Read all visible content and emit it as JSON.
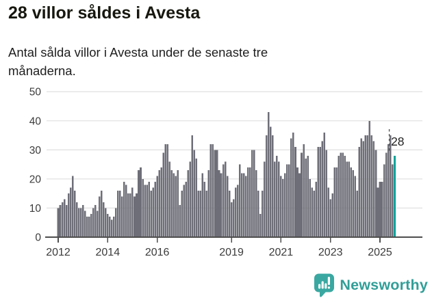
{
  "header": {
    "title": "28 villor såldes i Avesta",
    "subtitle": "Antal sålda villor i Avesta under de senaste tre månaderna."
  },
  "chart_data": {
    "type": "bar",
    "title": "28 villor såldes i Avesta",
    "xlabel": "",
    "ylabel": "",
    "x_start": "2012-01",
    "x_end": "2025-08",
    "frequency": "monthly",
    "values": [
      10,
      11,
      12,
      13,
      11,
      15,
      17,
      21,
      16,
      12,
      10,
      10,
      11,
      9,
      7,
      7,
      8,
      10,
      11,
      9,
      14,
      16,
      12,
      10,
      8,
      7,
      6,
      7,
      10,
      16,
      16,
      14,
      19,
      18,
      15,
      15,
      17,
      14,
      15,
      23,
      24,
      20,
      18,
      18,
      19,
      16,
      17,
      19,
      21,
      23,
      24,
      29,
      32,
      32,
      26,
      23,
      22,
      21,
      23,
      11,
      16,
      18,
      19,
      23,
      26,
      35,
      30,
      27,
      16,
      16,
      22,
      19,
      16,
      23,
      32,
      32,
      30,
      30,
      23,
      22,
      25,
      26,
      21,
      16,
      12,
      13,
      17,
      18,
      25,
      22,
      22,
      21,
      24,
      24,
      30,
      30,
      23,
      16,
      8,
      16,
      26,
      35,
      43,
      38,
      35,
      26,
      28,
      26,
      21,
      20,
      22,
      25,
      25,
      34,
      36,
      31,
      24,
      22,
      29,
      32,
      27,
      28,
      20,
      17,
      16,
      19,
      31,
      31,
      33,
      36,
      30,
      17,
      13,
      15,
      24,
      24,
      28,
      29,
      29,
      28,
      26,
      26,
      24,
      23,
      21,
      16,
      31,
      34,
      33,
      35,
      35,
      40,
      35,
      33,
      30,
      17,
      19,
      19,
      25,
      29,
      32,
      35,
      25,
      28
    ],
    "ylim": [
      0,
      50
    ],
    "yticks": [
      0,
      10,
      20,
      30,
      40,
      50
    ],
    "xticks": [
      {
        "label": "2012",
        "month_index": 0
      },
      {
        "label": "2014",
        "month_index": 24
      },
      {
        "label": "2016",
        "month_index": 48
      },
      {
        "label": "2019",
        "month_index": 84
      },
      {
        "label": "2021",
        "month_index": 108
      },
      {
        "label": "2023",
        "month_index": 132
      },
      {
        "label": "2025",
        "month_index": 156
      }
    ],
    "grid": true,
    "legend": false,
    "annotation": {
      "text": "28",
      "target_index": 163
    },
    "colors": {
      "bar": "#6e6e78",
      "highlight": "#00a39b",
      "grid": "#e2e2e2",
      "axis": "#4d4d4d",
      "tick_label": "#3b3b3b",
      "annotation_text": "#1f1f1f"
    }
  },
  "footer": {
    "brand": "Newsworthy",
    "brand_color": "#319e98",
    "icon_color": "#3aa8a1",
    "icon": "newsworthy-speech-bubble-bars-icon"
  }
}
